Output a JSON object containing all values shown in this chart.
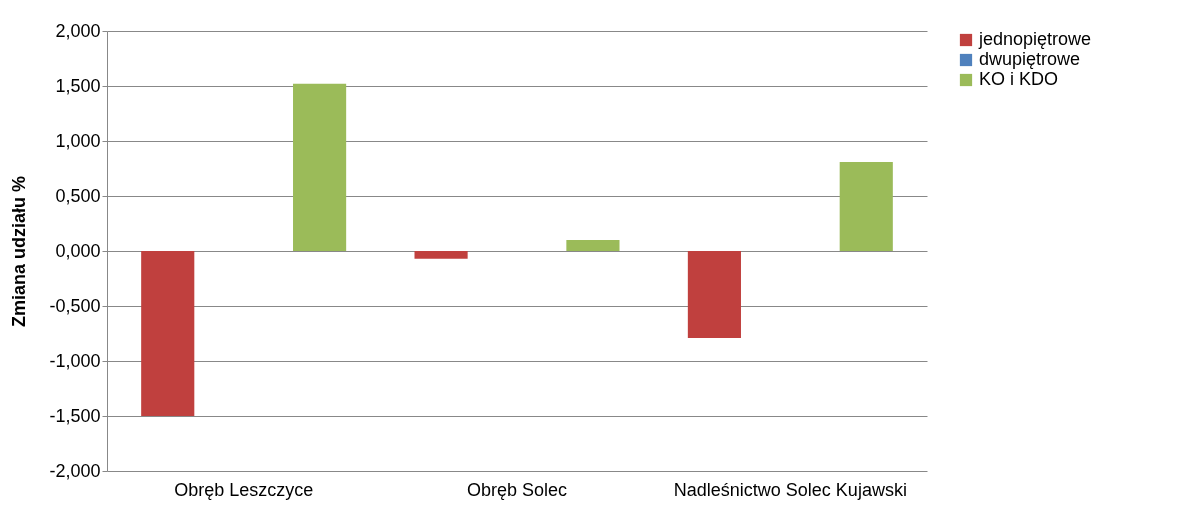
{
  "chart_data": {
    "type": "bar",
    "ylabel": "Zmiana udziału %",
    "categories": [
      "Obręb Leszczyce",
      "Obręb Solec",
      "Nadleśnictwo Solec Kujawski"
    ],
    "series": [
      {
        "name": "jednopiętrowe",
        "color": "#c0403e",
        "values": [
          -1.5,
          -0.07,
          -0.79
        ]
      },
      {
        "name": "dwupiętrowe",
        "color": "#4f81bd",
        "values": [
          0,
          0,
          0
        ]
      },
      {
        "name": "KO i KDO",
        "color": "#9bbb59",
        "values": [
          1.52,
          0.1,
          0.81
        ]
      }
    ],
    "ylim": [
      -2,
      2
    ],
    "yticks": [
      {
        "value": -2,
        "label": "-2,000"
      },
      {
        "value": -1.5,
        "label": "-1,500"
      },
      {
        "value": -1,
        "label": "-1,000"
      },
      {
        "value": -0.5,
        "label": "-0,500"
      },
      {
        "value": 0,
        "label": "0,000"
      },
      {
        "value": 0.5,
        "label": "0,500"
      },
      {
        "value": 1,
        "label": "1,000"
      },
      {
        "value": 1.5,
        "label": "1,500"
      },
      {
        "value": 2,
        "label": "2,000"
      }
    ],
    "grid": "y",
    "legend": "right"
  }
}
